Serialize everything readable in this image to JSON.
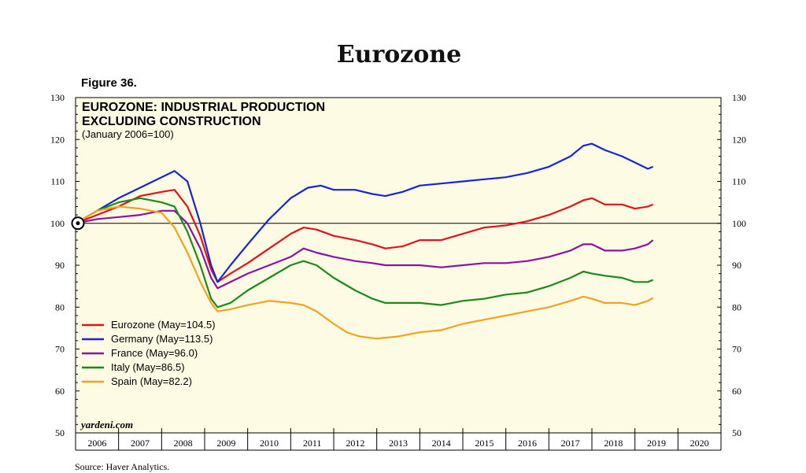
{
  "header": {
    "title": "Eurozone",
    "figure": "Figure 36."
  },
  "footer": {
    "source": "Source: Haver Analytics."
  },
  "chart_data": {
    "type": "line",
    "title": "EUROZONE: INDUSTRIAL PRODUCTION",
    "title2": "EXCLUDING CONSTRUCTION",
    "subtitle": "(January 2006=100)",
    "brand": "yardeni.com",
    "ylim": [
      50,
      130
    ],
    "yticks": [
      "50",
      "60",
      "70",
      "80",
      "90",
      "100",
      "110",
      "120",
      "130"
    ],
    "xticks": [
      "2006",
      "2007",
      "2008",
      "2009",
      "2010",
      "2011",
      "2012",
      "2013",
      "2014",
      "2015",
      "2016",
      "2017",
      "2018",
      "2019",
      "2020"
    ],
    "xlim": [
      2006,
      2021
    ],
    "reference_line": 100,
    "background": "#fdfbe3",
    "legend_position": "bottom-left",
    "series": [
      {
        "name": "Eurozone (May=104.5)",
        "color": "#e3121b",
        "points": [
          [
            2006.0,
            100
          ],
          [
            2006.5,
            102
          ],
          [
            2007.0,
            104
          ],
          [
            2007.5,
            106.5
          ],
          [
            2008.0,
            107.5
          ],
          [
            2008.3,
            108
          ],
          [
            2008.6,
            104
          ],
          [
            2008.9,
            97
          ],
          [
            2009.15,
            89
          ],
          [
            2009.3,
            86
          ],
          [
            2009.6,
            88
          ],
          [
            2010.0,
            90.5
          ],
          [
            2010.5,
            94
          ],
          [
            2011.0,
            97.5
          ],
          [
            2011.3,
            99
          ],
          [
            2011.6,
            98.5
          ],
          [
            2012.0,
            97
          ],
          [
            2012.5,
            96
          ],
          [
            2012.9,
            95
          ],
          [
            2013.2,
            94
          ],
          [
            2013.6,
            94.5
          ],
          [
            2014.0,
            96
          ],
          [
            2014.5,
            96
          ],
          [
            2015.0,
            97.5
          ],
          [
            2015.5,
            99
          ],
          [
            2016.0,
            99.5
          ],
          [
            2016.5,
            100.5
          ],
          [
            2017.0,
            102
          ],
          [
            2017.5,
            104
          ],
          [
            2017.8,
            105.5
          ],
          [
            2018.0,
            106
          ],
          [
            2018.3,
            104.5
          ],
          [
            2018.7,
            104.5
          ],
          [
            2019.0,
            103.5
          ],
          [
            2019.3,
            104
          ],
          [
            2019.42,
            104.5
          ]
        ]
      },
      {
        "name": "Germany (May=113.5)",
        "color": "#1626d6",
        "points": [
          [
            2006.0,
            100
          ],
          [
            2006.5,
            103
          ],
          [
            2007.0,
            106
          ],
          [
            2007.5,
            108.5
          ],
          [
            2008.0,
            111
          ],
          [
            2008.3,
            112.5
          ],
          [
            2008.6,
            110
          ],
          [
            2008.9,
            100
          ],
          [
            2009.15,
            90
          ],
          [
            2009.3,
            86
          ],
          [
            2009.6,
            90
          ],
          [
            2010.0,
            95
          ],
          [
            2010.5,
            101
          ],
          [
            2011.0,
            106
          ],
          [
            2011.4,
            108.5
          ],
          [
            2011.7,
            109
          ],
          [
            2012.0,
            108
          ],
          [
            2012.5,
            108
          ],
          [
            2012.9,
            107
          ],
          [
            2013.2,
            106.5
          ],
          [
            2013.6,
            107.5
          ],
          [
            2014.0,
            109
          ],
          [
            2014.5,
            109.5
          ],
          [
            2015.0,
            110
          ],
          [
            2015.5,
            110.5
          ],
          [
            2016.0,
            111
          ],
          [
            2016.5,
            112
          ],
          [
            2017.0,
            113.5
          ],
          [
            2017.5,
            116
          ],
          [
            2017.8,
            118.5
          ],
          [
            2018.0,
            119
          ],
          [
            2018.3,
            117.5
          ],
          [
            2018.7,
            116
          ],
          [
            2019.0,
            114.5
          ],
          [
            2019.3,
            113
          ],
          [
            2019.42,
            113.5
          ]
        ]
      },
      {
        "name": "France (May=96.0)",
        "color": "#8b12a8",
        "points": [
          [
            2006.0,
            100
          ],
          [
            2006.5,
            101
          ],
          [
            2007.0,
            101.5
          ],
          [
            2007.5,
            102
          ],
          [
            2008.0,
            103
          ],
          [
            2008.3,
            103
          ],
          [
            2008.6,
            100
          ],
          [
            2008.9,
            94
          ],
          [
            2009.15,
            87
          ],
          [
            2009.3,
            84.5
          ],
          [
            2009.6,
            86
          ],
          [
            2010.0,
            88
          ],
          [
            2010.5,
            90
          ],
          [
            2011.0,
            92
          ],
          [
            2011.3,
            94
          ],
          [
            2011.6,
            93
          ],
          [
            2012.0,
            92
          ],
          [
            2012.5,
            91
          ],
          [
            2012.9,
            90.5
          ],
          [
            2013.2,
            90
          ],
          [
            2013.6,
            90
          ],
          [
            2014.0,
            90
          ],
          [
            2014.5,
            89.5
          ],
          [
            2015.0,
            90
          ],
          [
            2015.5,
            90.5
          ],
          [
            2016.0,
            90.5
          ],
          [
            2016.5,
            91
          ],
          [
            2017.0,
            92
          ],
          [
            2017.5,
            93.5
          ],
          [
            2017.8,
            95
          ],
          [
            2018.0,
            95
          ],
          [
            2018.3,
            93.5
          ],
          [
            2018.7,
            93.5
          ],
          [
            2019.0,
            94
          ],
          [
            2019.3,
            95
          ],
          [
            2019.42,
            96
          ]
        ]
      },
      {
        "name": "Italy (May=86.5)",
        "color": "#1c8a1a",
        "points": [
          [
            2006.0,
            100
          ],
          [
            2006.5,
            103
          ],
          [
            2007.0,
            105
          ],
          [
            2007.5,
            106
          ],
          [
            2008.0,
            105
          ],
          [
            2008.3,
            104
          ],
          [
            2008.6,
            98
          ],
          [
            2008.9,
            90
          ],
          [
            2009.15,
            82
          ],
          [
            2009.3,
            80
          ],
          [
            2009.6,
            81
          ],
          [
            2010.0,
            84
          ],
          [
            2010.5,
            87
          ],
          [
            2011.0,
            90
          ],
          [
            2011.3,
            91
          ],
          [
            2011.6,
            90
          ],
          [
            2012.0,
            87
          ],
          [
            2012.5,
            84
          ],
          [
            2012.9,
            82
          ],
          [
            2013.2,
            81
          ],
          [
            2013.6,
            81
          ],
          [
            2014.0,
            81
          ],
          [
            2014.5,
            80.5
          ],
          [
            2015.0,
            81.5
          ],
          [
            2015.5,
            82
          ],
          [
            2016.0,
            83
          ],
          [
            2016.5,
            83.5
          ],
          [
            2017.0,
            85
          ],
          [
            2017.5,
            87
          ],
          [
            2017.8,
            88.5
          ],
          [
            2018.0,
            88
          ],
          [
            2018.3,
            87.5
          ],
          [
            2018.7,
            87
          ],
          [
            2019.0,
            86
          ],
          [
            2019.3,
            86
          ],
          [
            2019.42,
            86.5
          ]
        ]
      },
      {
        "name": "Spain (May=82.2)",
        "color": "#f4a21d",
        "points": [
          [
            2006.0,
            100
          ],
          [
            2006.5,
            103
          ],
          [
            2007.0,
            104
          ],
          [
            2007.5,
            103.5
          ],
          [
            2008.0,
            102.5
          ],
          [
            2008.3,
            99
          ],
          [
            2008.6,
            93
          ],
          [
            2008.9,
            86
          ],
          [
            2009.15,
            81
          ],
          [
            2009.3,
            79
          ],
          [
            2009.6,
            79.5
          ],
          [
            2010.0,
            80.5
          ],
          [
            2010.5,
            81.5
          ],
          [
            2011.0,
            81
          ],
          [
            2011.3,
            80.5
          ],
          [
            2011.6,
            79
          ],
          [
            2012.0,
            76
          ],
          [
            2012.3,
            74
          ],
          [
            2012.6,
            73
          ],
          [
            2013.0,
            72.5
          ],
          [
            2013.5,
            73
          ],
          [
            2014.0,
            74
          ],
          [
            2014.5,
            74.5
          ],
          [
            2015.0,
            76
          ],
          [
            2015.5,
            77
          ],
          [
            2016.0,
            78
          ],
          [
            2016.5,
            79
          ],
          [
            2017.0,
            80
          ],
          [
            2017.5,
            81.5
          ],
          [
            2017.8,
            82.5
          ],
          [
            2018.0,
            82
          ],
          [
            2018.3,
            81
          ],
          [
            2018.7,
            81
          ],
          [
            2019.0,
            80.5
          ],
          [
            2019.3,
            81.5
          ],
          [
            2019.42,
            82.2
          ]
        ]
      }
    ]
  }
}
